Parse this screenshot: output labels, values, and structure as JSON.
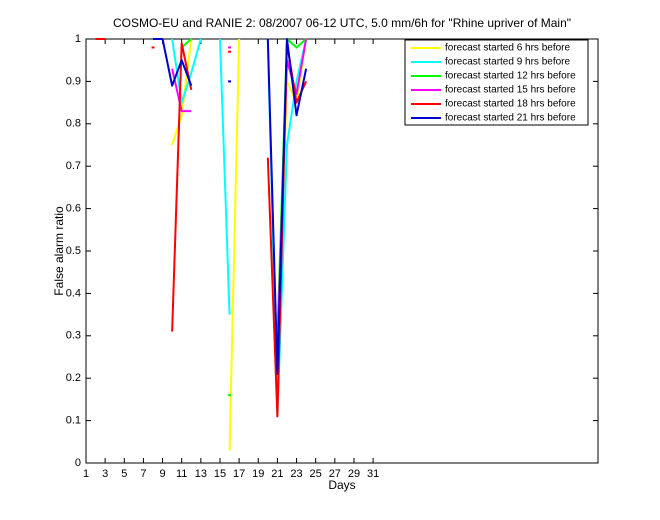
{
  "chart_data": {
    "type": "line",
    "title": "COSMO-EU and RANIE 2: 08/2007 06-12 UTC, 5.0 mm/6h for \"Rhine upriver of Main\"",
    "x_label": "Days",
    "y_label": "False alarm ratio",
    "x": [
      1,
      2,
      3,
      4,
      5,
      6,
      7,
      8,
      9,
      10,
      11,
      12,
      13,
      14,
      15,
      16,
      17,
      18,
      19,
      20,
      21,
      22,
      23,
      24,
      25,
      26,
      27,
      28,
      29,
      30,
      31
    ],
    "xlim": [
      1,
      54.5
    ],
    "ylim": [
      0,
      1
    ],
    "xticks": [
      1,
      3,
      5,
      7,
      9,
      11,
      13,
      15,
      17,
      19,
      21,
      23,
      25,
      27,
      29,
      31
    ],
    "yticks": [
      0,
      0.1,
      0.2,
      0.3,
      0.4,
      0.5,
      0.6,
      0.7,
      0.8,
      0.9,
      1
    ],
    "legend_position": "upper right",
    "series": [
      {
        "name": "forecast started 6 hrs before",
        "color": "#ffff00",
        "values": [
          null,
          null,
          null,
          null,
          null,
          null,
          null,
          null,
          null,
          0.75,
          0.82,
          1,
          null,
          null,
          null,
          0.03,
          1,
          null,
          null,
          null,
          0.2,
          0.9,
          0.85,
          1,
          null,
          null,
          null,
          null,
          null,
          null,
          null
        ]
      },
      {
        "name": "forecast started 9 hrs before",
        "color": "#00ffff",
        "values": [
          null,
          null,
          null,
          null,
          null,
          null,
          null,
          null,
          null,
          1,
          0.85,
          0.92,
          1,
          null,
          1,
          0.35,
          null,
          null,
          null,
          1,
          0.11,
          0.75,
          0.9,
          1,
          null,
          null,
          null,
          null,
          null,
          null,
          null
        ]
      },
      {
        "name": "forecast started 12 hrs before",
        "color": "#00ff00",
        "values": [
          null,
          null,
          null,
          null,
          null,
          null,
          null,
          null,
          null,
          null,
          0.98,
          1,
          null,
          null,
          null,
          0.16,
          null,
          null,
          null,
          null,
          0.3,
          1,
          0.98,
          1,
          null,
          null,
          null,
          null,
          null,
          null,
          null
        ]
      },
      {
        "name": "forecast started 15 hrs before",
        "color": "#ff00ff",
        "values": [
          null,
          null,
          null,
          null,
          null,
          null,
          null,
          null,
          null,
          0.93,
          0.83,
          0.83,
          null,
          null,
          null,
          0.98,
          null,
          null,
          null,
          null,
          0.27,
          0.95,
          0.87,
          1,
          null,
          null,
          null,
          null,
          null,
          null,
          null
        ]
      },
      {
        "name": "forecast started 18 hrs before",
        "color": "#ff0000",
        "values": [
          null,
          1,
          1,
          null,
          null,
          null,
          null,
          0.98,
          null,
          0.31,
          0.99,
          0.88,
          null,
          null,
          null,
          0.97,
          null,
          null,
          null,
          0.72,
          0.11,
          0.99,
          0.85,
          0.9,
          null,
          null,
          null,
          null,
          null,
          null,
          null
        ]
      },
      {
        "name": "forecast started 21 hrs before",
        "color": "#0000cc",
        "values": [
          null,
          null,
          null,
          null,
          null,
          null,
          null,
          1,
          1,
          0.89,
          0.95,
          0.89,
          null,
          null,
          null,
          0.9,
          null,
          null,
          null,
          1,
          0.21,
          1,
          0.82,
          0.93,
          null,
          null,
          null,
          null,
          null,
          null,
          null
        ]
      }
    ]
  }
}
